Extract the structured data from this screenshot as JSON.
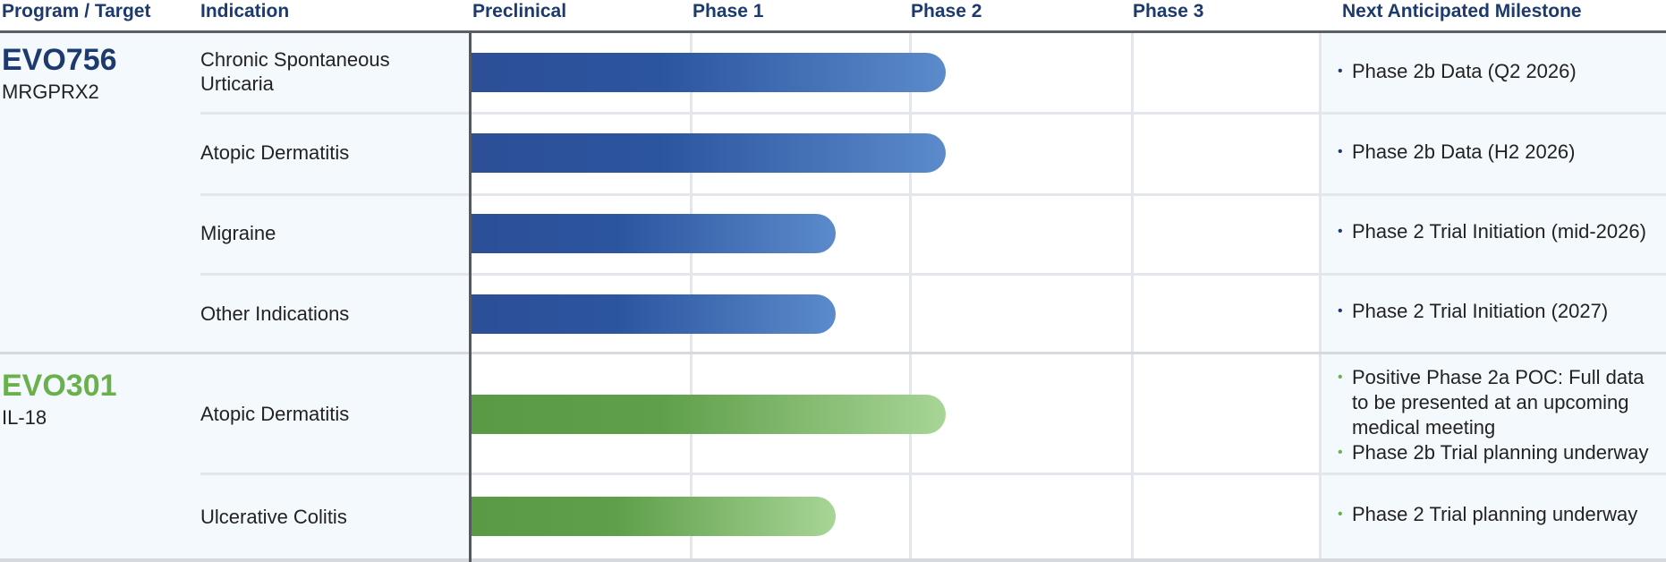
{
  "header": {
    "program_target": "Program / Target",
    "indication": "Indication",
    "preclinical": "Preclinical",
    "phase1": "Phase 1",
    "phase2": "Phase 2",
    "phase3": "Phase 3",
    "milestone": "Next Anticipated Milestone"
  },
  "colors": {
    "header_text": "#1c3a6e",
    "evo756": "#1c3a6e",
    "evo301": "#6ab04c",
    "bar_blue_start": "#2c4f97",
    "bar_blue_end": "#5b8bcb",
    "bar_green_start": "#5a9a45",
    "bar_green_end": "#a7d596"
  },
  "programs": [
    {
      "name": "EVO756",
      "target": "MRGPRX2",
      "rows": [
        {
          "indication": "Chronic Spontaneous Urticaria",
          "stage": "Phase 2",
          "progress": 0.56,
          "milestones": [
            "Phase 2b Data (Q2 2026)"
          ]
        },
        {
          "indication": "Atopic Dermatitis",
          "stage": "Phase 2",
          "progress": 0.56,
          "milestones": [
            "Phase 2b Data (H2 2026)"
          ]
        },
        {
          "indication": "Migraine",
          "stage": "Phase 1",
          "progress": 0.43,
          "milestones": [
            "Phase 2 Trial Initiation (mid-2026)"
          ]
        },
        {
          "indication": "Other Indications",
          "stage": "Phase 1",
          "progress": 0.43,
          "milestones": [
            "Phase 2 Trial Initiation (2027)"
          ]
        }
      ]
    },
    {
      "name": "EVO301",
      "target": "IL-18",
      "rows": [
        {
          "indication": "Atopic Dermatitis",
          "stage": "Phase 2",
          "progress": 0.56,
          "milestones": [
            "Positive Phase 2a POC: Full data to be presented at an upcoming medical meeting",
            "Phase 2b Trial planning underway"
          ]
        },
        {
          "indication": "Ulcerative Colitis",
          "stage": "Phase 1",
          "progress": 0.43,
          "milestones": [
            "Phase 2 Trial planning underway"
          ]
        }
      ]
    }
  ]
}
